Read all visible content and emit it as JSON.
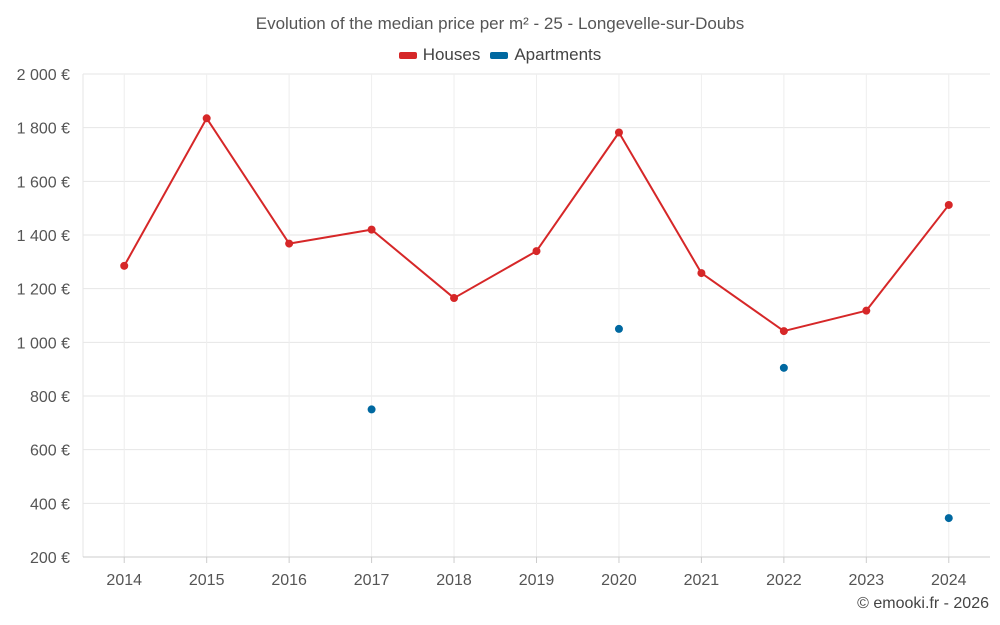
{
  "chart_data": {
    "type": "line",
    "title": "Evolution of the median price per m² - 25 - Longevelle-sur-Doubs",
    "xlabel": "",
    "ylabel": "",
    "categories": [
      "2014",
      "2015",
      "2016",
      "2017",
      "2018",
      "2019",
      "2020",
      "2021",
      "2022",
      "2023",
      "2024"
    ],
    "y_ticks": [
      200,
      400,
      600,
      800,
      1000,
      1200,
      1400,
      1600,
      1800,
      2000
    ],
    "y_tick_labels": [
      "200 €",
      "400 €",
      "600 €",
      "800 €",
      "1 000 €",
      "1 200 €",
      "1 400 €",
      "1 600 €",
      "1 800 €",
      "2 000 €"
    ],
    "ylim": [
      200,
      2000
    ],
    "grid": true,
    "legend_position": "top-center",
    "series": [
      {
        "name": "Houses",
        "color": "#d62728",
        "style": "line-with-markers",
        "values": [
          1285,
          1835,
          1368,
          1420,
          1165,
          1340,
          1782,
          1258,
          1042,
          1118,
          1512
        ]
      },
      {
        "name": "Apartments",
        "color": "#0068a0",
        "style": "markers-only",
        "values": [
          null,
          null,
          null,
          750,
          null,
          null,
          1050,
          null,
          905,
          null,
          345
        ]
      }
    ]
  },
  "credit": "© emooki.fr - 2026"
}
